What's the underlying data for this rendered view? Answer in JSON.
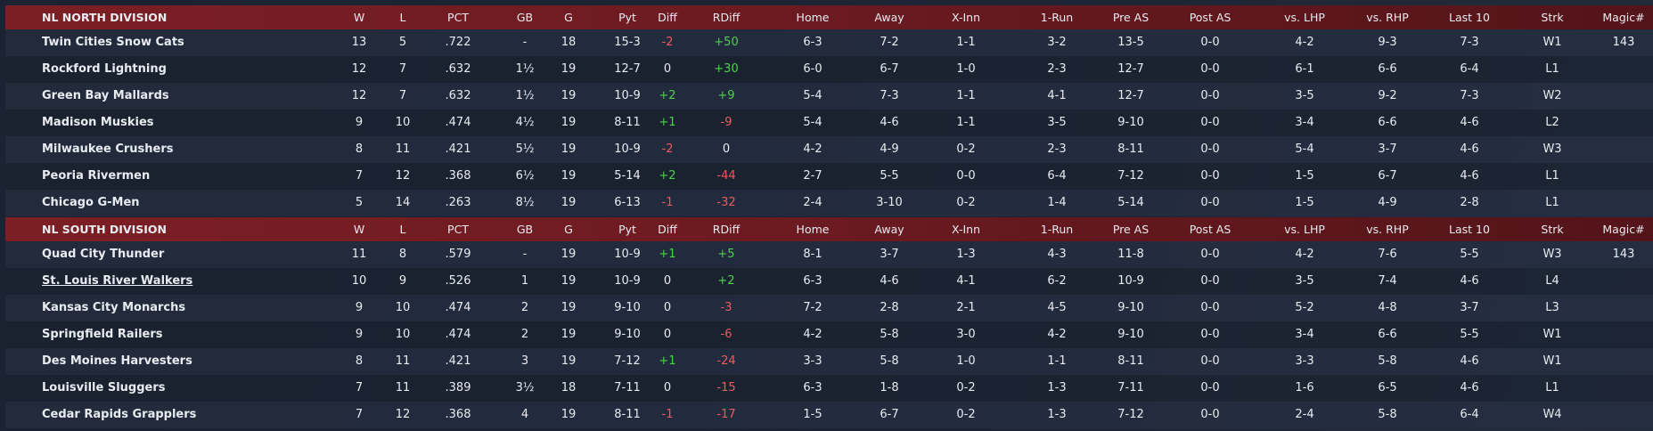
{
  "divisions": [
    {
      "header": [
        "NL NORTH DIVISION",
        "W",
        "L",
        "PCT",
        "GB",
        "G",
        "Pyt",
        "Diff",
        "RDiff",
        "Home",
        "Away",
        "X-Inn",
        "1-Run",
        "Pre AS",
        "Post AS",
        "vs. LHP",
        "vs. RHP",
        "Last 10",
        "Strk",
        "Magic#"
      ],
      "rows": [
        [
          "Twin Cities Snow Cats",
          "13",
          "5",
          ".722",
          "-",
          "18",
          "15-3",
          "-2",
          "+50",
          "6-3",
          "7-2",
          "1-1",
          "3-2",
          "13-5",
          "0-0",
          "4-2",
          "9-3",
          "7-3",
          "W1",
          "143"
        ],
        [
          "Rockford Lightning",
          "12",
          "7",
          ".632",
          "1½",
          "19",
          "12-7",
          "0",
          "+30",
          "6-0",
          "6-7",
          "1-0",
          "2-3",
          "12-7",
          "0-0",
          "6-1",
          "6-6",
          "6-4",
          "L1",
          null
        ],
        [
          "Green Bay Mallards",
          "12",
          "7",
          ".632",
          "1½",
          "19",
          "10-9",
          "+2",
          "+9",
          "5-4",
          "7-3",
          "1-1",
          "4-1",
          "12-7",
          "0-0",
          "3-5",
          "9-2",
          "7-3",
          "W2",
          null
        ],
        [
          "Madison Muskies",
          "9",
          "10",
          ".474",
          "4½",
          "19",
          "8-11",
          "+1",
          "-9",
          "5-4",
          "4-6",
          "1-1",
          "3-5",
          "9-10",
          "0-0",
          "3-4",
          "6-6",
          "4-6",
          "L2",
          null
        ],
        [
          "Milwaukee Crushers",
          "8",
          "11",
          ".421",
          "5½",
          "19",
          "10-9",
          "-2",
          "0",
          "4-2",
          "4-9",
          "0-2",
          "2-3",
          "8-11",
          "0-0",
          "5-4",
          "3-7",
          "4-6",
          "W3",
          null
        ],
        [
          "Peoria Rivermen",
          "7",
          "12",
          ".368",
          "6½",
          "19",
          "5-14",
          "+2",
          "-44",
          "2-7",
          "5-5",
          "0-0",
          "6-4",
          "7-12",
          "0-0",
          "1-5",
          "6-7",
          "4-6",
          "L1",
          null
        ],
        [
          "Chicago G-Men",
          "5",
          "14",
          ".263",
          "8½",
          "19",
          "6-13",
          "-1",
          "-32",
          "2-4",
          "3-10",
          "0-2",
          "1-4",
          "5-14",
          "0-0",
          "1-5",
          "4-9",
          "2-8",
          "L1",
          null
        ]
      ]
    },
    {
      "header": [
        "NL SOUTH DIVISION",
        "W",
        "L",
        "PCT",
        "GB",
        "G",
        "Pyt",
        "Diff",
        "RDiff",
        "Home",
        "Away",
        "X-Inn",
        "1-Run",
        "Pre AS",
        "Post AS",
        "vs. LHP",
        "vs. RHP",
        "Last 10",
        "Strk",
        "Magic#"
      ],
      "highlight_row": 1,
      "rows": [
        [
          "Quad City Thunder",
          "11",
          "8",
          ".579",
          "-",
          "19",
          "10-9",
          "+1",
          "+5",
          "8-1",
          "3-7",
          "1-3",
          "4-3",
          "11-8",
          "0-0",
          "4-2",
          "7-6",
          "5-5",
          "W3",
          "143"
        ],
        [
          "St. Louis River Walkers",
          "10",
          "9",
          ".526",
          "1",
          "19",
          "10-9",
          "0",
          "+2",
          "6-3",
          "4-6",
          "4-1",
          "6-2",
          "10-9",
          "0-0",
          "3-5",
          "7-4",
          "4-6",
          "L4",
          null
        ],
        [
          "Kansas City Monarchs",
          "9",
          "10",
          ".474",
          "2",
          "19",
          "9-10",
          "0",
          "-3",
          "7-2",
          "2-8",
          "2-1",
          "4-5",
          "9-10",
          "0-0",
          "5-2",
          "4-8",
          "3-7",
          "L3",
          null
        ],
        [
          "Springfield Railers",
          "9",
          "10",
          ".474",
          "2",
          "19",
          "9-10",
          "0",
          "-6",
          "4-2",
          "5-8",
          "3-0",
          "4-2",
          "9-10",
          "0-0",
          "3-4",
          "6-6",
          "5-5",
          "W1",
          null
        ],
        [
          "Des Moines Harvesters",
          "8",
          "11",
          ".421",
          "3",
          "19",
          "7-12",
          "+1",
          "-24",
          "3-3",
          "5-8",
          "1-0",
          "1-1",
          "8-11",
          "0-0",
          "3-3",
          "5-8",
          "4-6",
          "W1",
          null
        ],
        [
          "Louisville Sluggers",
          "7",
          "11",
          ".389",
          "3½",
          "18",
          "7-11",
          "0",
          "-15",
          "6-3",
          "1-8",
          "0-2",
          "1-3",
          "7-11",
          "0-0",
          "1-6",
          "6-5",
          "4-6",
          "L1",
          null
        ],
        [
          "Cedar Rapids Grapplers",
          "7",
          "12",
          ".368",
          "4",
          "19",
          "8-11",
          "-1",
          "-17",
          "1-5",
          "6-7",
          "0-2",
          "1-3",
          "7-12",
          "0-0",
          "2-4",
          "5-8",
          "6-4",
          "W4",
          null
        ]
      ]
    }
  ]
}
